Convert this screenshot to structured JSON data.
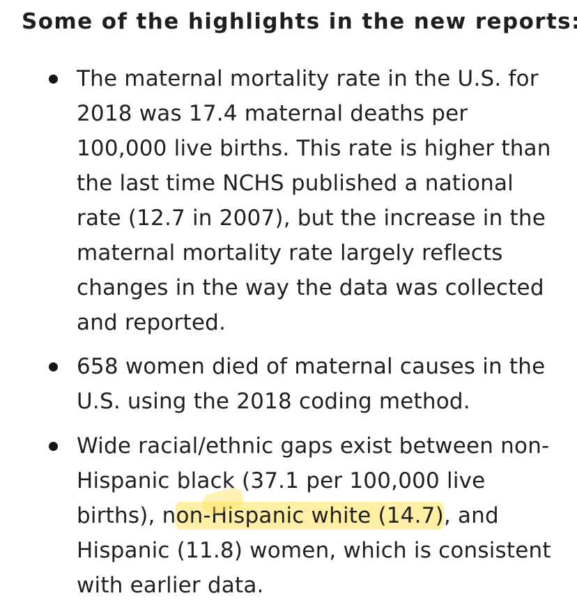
{
  "heading": "Some of the highlights in the new reports:",
  "bullets": [
    {
      "lines": [
        "The maternal mortality rate in the U.S. for",
        "2018 was 17.4 maternal deaths per",
        "100,000 live births. This rate is higher than",
        "the last time NCHS published a national",
        "rate (12.7 in 2007), but the increase in the",
        "maternal mortality rate largely reflects",
        "changes in the way the data was collected",
        "and reported."
      ]
    },
    {
      "lines": [
        "658 women died of maternal causes in the",
        "U.S. using the 2018 coding method."
      ]
    },
    {
      "lines": [
        "Wide racial/ethnic gaps exist between non-",
        "Hispanic black (37.1 per 100,000 live"
      ],
      "line3_before": "births), n",
      "line3_highlight": "on-Hispanic white (14.7)",
      "line3_after": ", and",
      "lines_after": [
        "Hispanic (11.8) women, which is consistent",
        "with earlier data."
      ]
    }
  ],
  "colors": {
    "text": "#1f1f1f",
    "highlight": "#ffe25a"
  }
}
